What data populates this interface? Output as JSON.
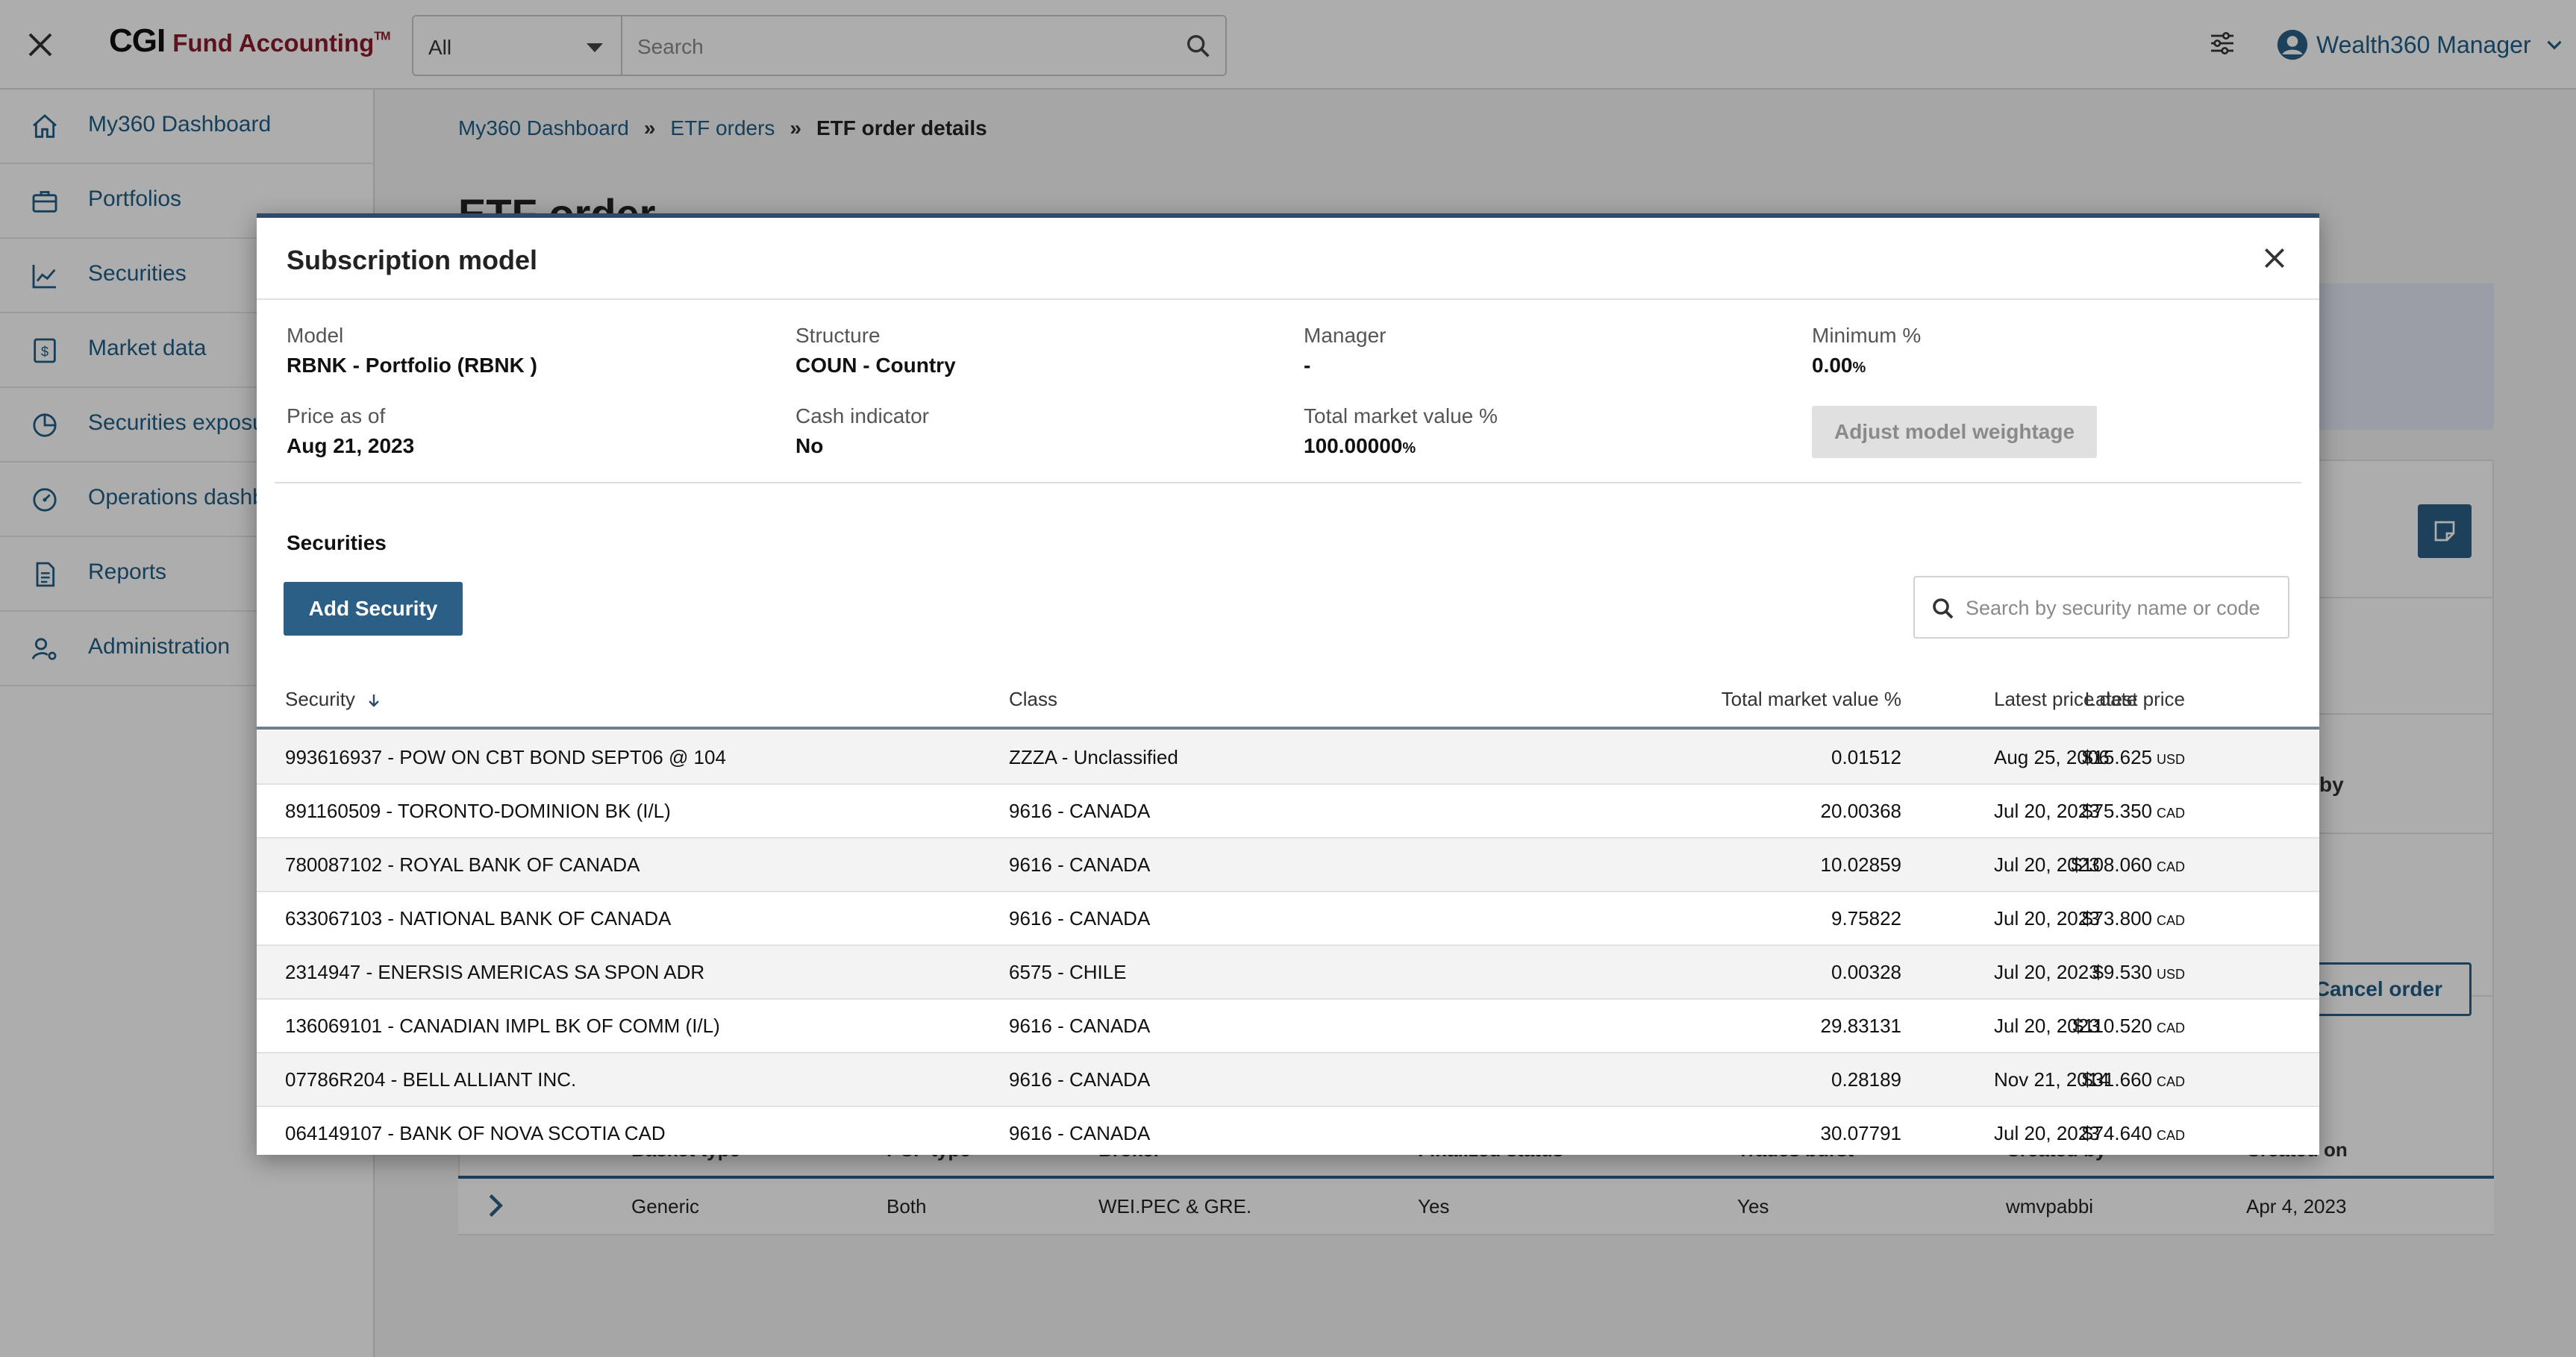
{
  "topbar": {
    "brand": "CGI",
    "product": "Fund Accounting",
    "trademark": "TM",
    "scope_value": "All",
    "search_placeholder": "Search",
    "user_name": "Wealth360 Manager"
  },
  "sidebar": {
    "items": [
      {
        "label": "My360 Dashboard",
        "icon": "home-icon"
      },
      {
        "label": "Portfolios",
        "icon": "briefcase-icon"
      },
      {
        "label": "Securities",
        "icon": "chart-icon"
      },
      {
        "label": "Market data",
        "icon": "dollar-icon"
      },
      {
        "label": "Securities exposure",
        "icon": "pie-icon"
      },
      {
        "label": "Operations dashboard",
        "icon": "gauge-icon"
      },
      {
        "label": "Reports",
        "icon": "document-icon"
      },
      {
        "label": "Administration",
        "icon": "user-gear-icon"
      }
    ]
  },
  "breadcrumb": {
    "items": [
      "My360 Dashboard",
      "ETF orders",
      "ETF order details"
    ]
  },
  "page": {
    "title": "ETF order",
    "created_by_fragment": "by",
    "cancel_label": "Cancel order",
    "table_headers": [
      "Basket type",
      "PCF type",
      "Broker",
      "Finalized status",
      "Trades burst",
      "Created by",
      "Created on"
    ],
    "table_row": [
      "Generic",
      "Both",
      "WEI.PEC & GRE.",
      "Yes",
      "Yes",
      "wmvpabbi",
      "Apr 4, 2023"
    ]
  },
  "modal": {
    "title": "Subscription model",
    "fields": {
      "model": {
        "label": "Model",
        "value": "RBNK - Portfolio (RBNK )"
      },
      "structure": {
        "label": "Structure",
        "value": "COUN - Country"
      },
      "manager": {
        "label": "Manager",
        "value": "-"
      },
      "minimum": {
        "label": "Minimum %",
        "value": "0.00",
        "unit": "%"
      },
      "price_as_of": {
        "label": "Price as of",
        "value": "Aug 21, 2023"
      },
      "cash_indicator": {
        "label": "Cash indicator",
        "value": "No"
      },
      "total_mv": {
        "label": "Total market value %",
        "value": "100.00000",
        "unit": "%"
      }
    },
    "adjust_label": "Adjust model weightage",
    "securities_title": "Securities",
    "add_security_label": "Add Security",
    "search_placeholder": "Search by security name or code",
    "columns": {
      "security": "Security",
      "class": "Class",
      "total_mv": "Total market value %",
      "latest_price": "Latest price",
      "latest_price_date": "Latest price date"
    },
    "rows": [
      {
        "security": "993616937 - POW ON CBT BOND SEPT06 @ 104",
        "class": "ZZZA - Unclassified",
        "mv": "0.01512",
        "price": "$15.625",
        "cur": "USD",
        "date": "Aug 25, 2006"
      },
      {
        "security": "891160509 - TORONTO-DOMINION BK (I/L)",
        "class": "9616 - CANADA",
        "mv": "20.00368",
        "price": "$75.350",
        "cur": "CAD",
        "date": "Jul 20, 2023"
      },
      {
        "security": "780087102 - ROYAL BANK OF CANADA",
        "class": "9616 - CANADA",
        "mv": "10.02859",
        "price": "$108.060",
        "cur": "CAD",
        "date": "Jul 20, 2023"
      },
      {
        "security": "633067103 - NATIONAL BANK OF CANADA",
        "class": "9616 - CANADA",
        "mv": "9.75822",
        "price": "$73.800",
        "cur": "CAD",
        "date": "Jul 20, 2023"
      },
      {
        "security": "2314947 - ENERSIS AMERICAS SA SPON ADR",
        "class": "6575 - CHILE",
        "mv": "0.00328",
        "price": "$9.530",
        "cur": "USD",
        "date": "Jul 20, 2023"
      },
      {
        "security": "136069101 - CANADIAN IMPL BK OF COMM (I/L)",
        "class": "9616 - CANADA",
        "mv": "29.83131",
        "price": "$110.520",
        "cur": "CAD",
        "date": "Jul 20, 2023"
      },
      {
        "security": "07786R204 - BELL ALLIANT INC.",
        "class": "9616 - CANADA",
        "mv": "0.28189",
        "price": "$31.660",
        "cur": "CAD",
        "date": "Nov 21, 2014"
      },
      {
        "security": "064149107 - BANK OF NOVA SCOTIA CAD",
        "class": "9616 - CANADA",
        "mv": "30.07791",
        "price": "$74.640",
        "cur": "CAD",
        "date": "Jul 20, 2023"
      }
    ]
  }
}
